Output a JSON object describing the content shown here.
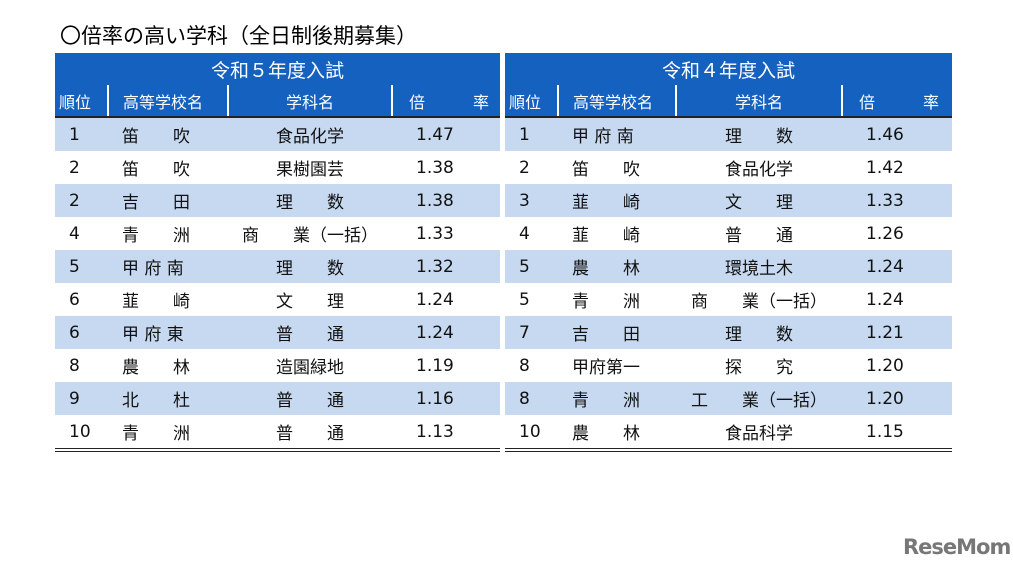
{
  "title": "〇倍率の高い学科（全日制後期募集）",
  "headers": {
    "rank": "順位",
    "school": "高等学校名",
    "dept": "学科名",
    "ratio": "倍　　　率"
  },
  "tables": [
    {
      "caption": "令和５年度入試",
      "rows": [
        {
          "rank": "1",
          "school": "笛　　吹",
          "dept": "食品化学",
          "ratio": "1.47"
        },
        {
          "rank": "2",
          "school": "笛　　吹",
          "dept": "果樹園芸",
          "ratio": "1.38"
        },
        {
          "rank": "2",
          "school": "吉　　田",
          "dept": "理　　数",
          "ratio": "1.38"
        },
        {
          "rank": "4",
          "school": "青　　洲",
          "dept": "商　　業（一括）",
          "ratio": "1.33"
        },
        {
          "rank": "5",
          "school": "甲 府 南",
          "dept": "理　　数",
          "ratio": "1.32"
        },
        {
          "rank": "6",
          "school": "韮　　崎",
          "dept": "文　　理",
          "ratio": "1.24"
        },
        {
          "rank": "6",
          "school": "甲 府 東",
          "dept": "普　　通",
          "ratio": "1.24"
        },
        {
          "rank": "8",
          "school": "農　　林",
          "dept": "造園緑地",
          "ratio": "1.19"
        },
        {
          "rank": "9",
          "school": "北　　杜",
          "dept": "普　　通",
          "ratio": "1.16"
        },
        {
          "rank": "10",
          "school": "青　　洲",
          "dept": "普　　通",
          "ratio": "1.13"
        }
      ]
    },
    {
      "caption": "令和４年度入試",
      "rows": [
        {
          "rank": "1",
          "school": "甲 府 南",
          "dept": "理　　数",
          "ratio": "1.46"
        },
        {
          "rank": "2",
          "school": "笛　　吹",
          "dept": "食品化学",
          "ratio": "1.42"
        },
        {
          "rank": "3",
          "school": "韮　　崎",
          "dept": "文　　理",
          "ratio": "1.33"
        },
        {
          "rank": "4",
          "school": "韮　　崎",
          "dept": "普　　通",
          "ratio": "1.26"
        },
        {
          "rank": "5",
          "school": "農　　林",
          "dept": "環境土木",
          "ratio": "1.24"
        },
        {
          "rank": "5",
          "school": "青　　洲",
          "dept": "商　　業（一括）",
          "ratio": "1.24"
        },
        {
          "rank": "7",
          "school": "吉　　田",
          "dept": "理　　数",
          "ratio": "1.21"
        },
        {
          "rank": "8",
          "school": "甲府第一",
          "dept": "探　　究",
          "ratio": "1.20"
        },
        {
          "rank": "8",
          "school": "青　　洲",
          "dept": "工　　業（一括）",
          "ratio": "1.20"
        },
        {
          "rank": "10",
          "school": "農　　林",
          "dept": "食品科学",
          "ratio": "1.15"
        }
      ]
    }
  ],
  "logo": "ReseMom"
}
